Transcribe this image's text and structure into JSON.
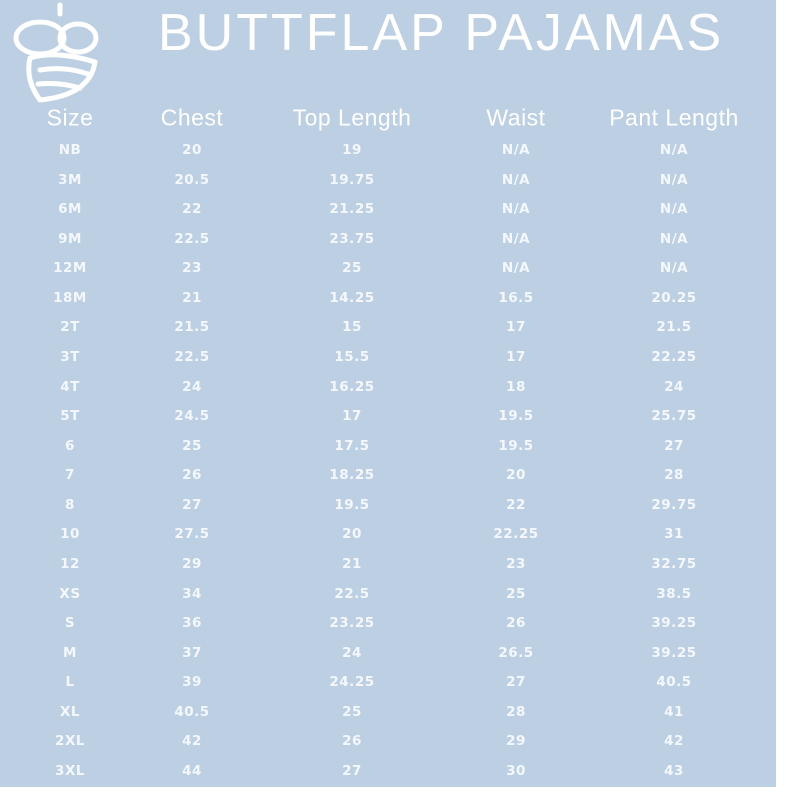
{
  "title": "BUTTFLAP PAJAMAS",
  "table": {
    "headers": [
      "Size",
      "Chest",
      "Top Length",
      "Waist",
      "Pant Length"
    ],
    "rows": [
      [
        "NB",
        "20",
        "19",
        "N/A",
        "N/A"
      ],
      [
        "3M",
        "20.5",
        "19.75",
        "N/A",
        "N/A"
      ],
      [
        "6M",
        "22",
        "21.25",
        "N/A",
        "N/A"
      ],
      [
        "9M",
        "22.5",
        "23.75",
        "N/A",
        "N/A"
      ],
      [
        "12M",
        "23",
        "25",
        "N/A",
        "N/A"
      ],
      [
        "18M",
        "21",
        "14.25",
        "16.5",
        "20.25"
      ],
      [
        "2T",
        "21.5",
        "15",
        "17",
        "21.5"
      ],
      [
        "3T",
        "22.5",
        "15.5",
        "17",
        "22.25"
      ],
      [
        "4T",
        "24",
        "16.25",
        "18",
        "24"
      ],
      [
        "5T",
        "24.5",
        "17",
        "19.5",
        "25.75"
      ],
      [
        "6",
        "25",
        "17.5",
        "19.5",
        "27"
      ],
      [
        "7",
        "26",
        "18.25",
        "20",
        "28"
      ],
      [
        "8",
        "27",
        "19.5",
        "22",
        "29.75"
      ],
      [
        "10",
        "27.5",
        "20",
        "22.25",
        "31"
      ],
      [
        "12",
        "29",
        "21",
        "23",
        "32.75"
      ],
      [
        "XS",
        "34",
        "22.5",
        "25",
        "38.5"
      ],
      [
        "S",
        "36",
        "23.25",
        "26",
        "39.25"
      ],
      [
        "M",
        "37",
        "24",
        "26.5",
        "39.25"
      ],
      [
        "L",
        "39",
        "24.25",
        "27",
        "40.5"
      ],
      [
        "XL",
        "40.5",
        "25",
        "28",
        "41"
      ],
      [
        "2XL",
        "42",
        "26",
        "29",
        "42"
      ],
      [
        "3XL",
        "44",
        "27",
        "30",
        "43"
      ]
    ]
  }
}
